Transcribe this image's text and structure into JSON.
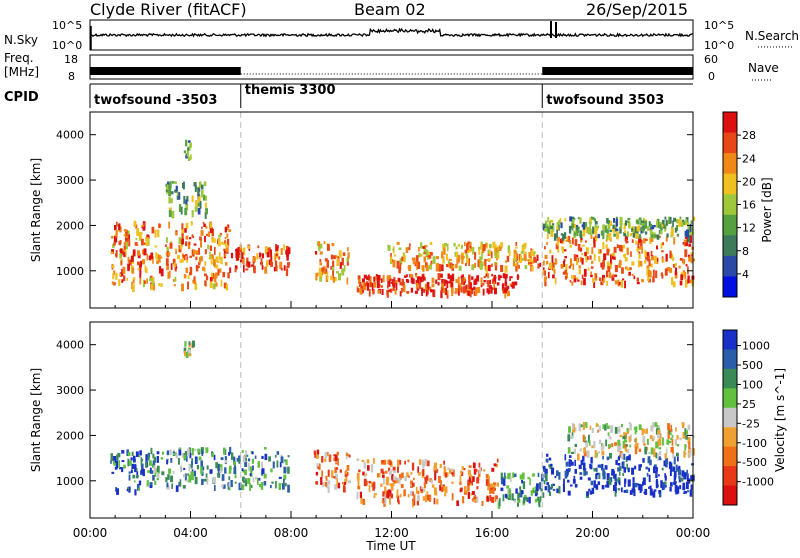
{
  "header": {
    "station": "Clyde River (fitACF)",
    "beam": "Beam 02",
    "date": "26/Sep/2015"
  },
  "noise_panel": {
    "left_label": "N.Sky",
    "right_label": "N.Search",
    "ytick_top": "10^5",
    "ytick_bottom": "10^0"
  },
  "freq_panel": {
    "left_label_line1": "Freq.",
    "left_label_line2": "[MHz]",
    "ytick_left_top": "18",
    "ytick_left_bottom": "8",
    "ytick_right_top": "60",
    "ytick_right_bottom": "0",
    "right_label": "Nave"
  },
  "cpid": {
    "label": "CPID",
    "segments": [
      {
        "name": "twofsound -3503",
        "start_hour": 0,
        "end_hour": 6
      },
      {
        "name": "themis 3300",
        "start_hour": 6,
        "end_hour": 18
      },
      {
        "name": "twofsound 3503",
        "start_hour": 18,
        "end_hour": 24
      }
    ]
  },
  "chart_data": [
    {
      "type": "heatmap",
      "name": "power",
      "ylabel": "Slant Range [km]",
      "xlim": [
        0,
        24
      ],
      "ylim": [
        180,
        4500
      ],
      "yticks": [
        1000,
        2000,
        3000,
        4000
      ],
      "colorbar": {
        "label": "Power [dB]",
        "ticks": [
          "4",
          "8",
          "12",
          "16",
          "20",
          "24",
          "28"
        ],
        "range": [
          0,
          32
        ],
        "colors": [
          "#0010e0",
          "#2a4aa8",
          "#3d7a5a",
          "#55a040",
          "#9ec83a",
          "#f0c020",
          "#f08818",
          "#e84818",
          "#dc1010"
        ]
      },
      "regions": [
        {
          "t0": 0.8,
          "t1": 5.6,
          "r0": 700,
          "r1": 2100,
          "level": 24
        },
        {
          "t0": 3.0,
          "t1": 4.6,
          "r0": 2300,
          "r1": 3000,
          "level": 12
        },
        {
          "t0": 3.7,
          "t1": 4.0,
          "r0": 3500,
          "r1": 3900,
          "level": 10
        },
        {
          "t0": 5.6,
          "t1": 7.9,
          "r0": 1050,
          "r1": 1600,
          "level": 27
        },
        {
          "t0": 8.9,
          "t1": 10.3,
          "r0": 850,
          "r1": 1700,
          "level": 22
        },
        {
          "t0": 10.6,
          "t1": 17.0,
          "r0": 550,
          "r1": 950,
          "level": 29
        },
        {
          "t0": 11.8,
          "t1": 17.9,
          "r0": 1100,
          "r1": 1650,
          "level": 22
        },
        {
          "t0": 18.0,
          "t1": 24.0,
          "r0": 750,
          "r1": 1800,
          "level": 25
        },
        {
          "t0": 18.0,
          "t1": 24.0,
          "r0": 1800,
          "r1": 2200,
          "level": 13
        }
      ]
    },
    {
      "type": "heatmap",
      "name": "velocity",
      "ylabel": "Slant Range [km]",
      "xlabel": "Time UT",
      "xlim": [
        0,
        24
      ],
      "xticks": [
        "00:00",
        "04:00",
        "08:00",
        "12:00",
        "16:00",
        "20:00",
        "00:00"
      ],
      "ylim": [
        180,
        4500
      ],
      "yticks": [
        1000,
        2000,
        3000,
        4000
      ],
      "colorbar": {
        "label": "Velocity [m s^-1]",
        "ticks": [
          "1000",
          "500",
          "100",
          "25",
          "-25",
          "-100",
          "-500",
          "-1000"
        ],
        "colors": [
          "#1830c8",
          "#2a5ea8",
          "#3a8a58",
          "#62c040",
          "#c8c8c8",
          "#f0a030",
          "#f07018",
          "#e83818",
          "#dc1010"
        ]
      },
      "regions": [
        {
          "t0": 0.8,
          "t1": 2.4,
          "r0": 800,
          "r1": 1700,
          "level": 1
        },
        {
          "t0": 2.4,
          "t1": 7.9,
          "r0": 900,
          "r1": 1750,
          "level": 2
        },
        {
          "t0": 8.9,
          "t1": 10.3,
          "r0": 850,
          "r1": 1700,
          "level": 6
        },
        {
          "t0": 10.6,
          "t1": 16.2,
          "r0": 550,
          "r1": 1500,
          "level": 6
        },
        {
          "t0": 16.2,
          "t1": 18.0,
          "r0": 500,
          "r1": 1200,
          "level": 2
        },
        {
          "t0": 18.0,
          "t1": 24.0,
          "r0": 750,
          "r1": 1600,
          "level": 0
        },
        {
          "t0": 19.0,
          "t1": 24.0,
          "r0": 1600,
          "r1": 2300,
          "level": 4
        },
        {
          "t0": 3.7,
          "t1": 4.1,
          "r0": 3800,
          "r1": 4100,
          "level": 4
        }
      ]
    }
  ]
}
